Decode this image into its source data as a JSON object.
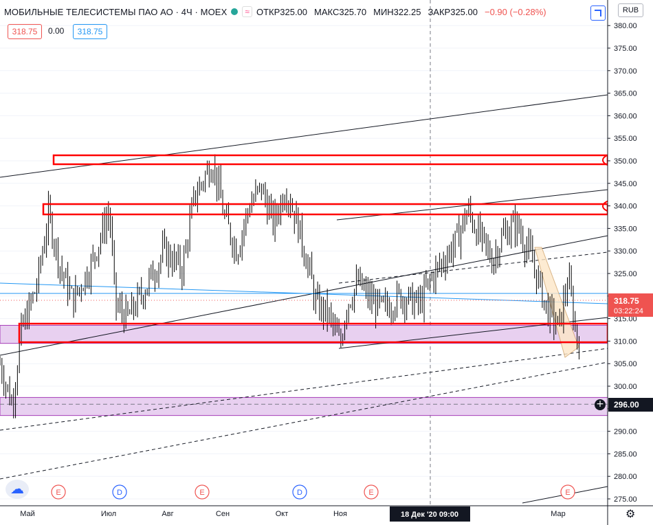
{
  "legend": {
    "title": "МОБИЛЬНЫЕ ТЕЛЕСИСТЕМЫ ПАО АО · 4Ч · MOEX",
    "flag": "≈",
    "open_label": "ОТКР",
    "open": "325.00",
    "high_label": "МАКС",
    "high": "325.70",
    "low_label": "МИН",
    "low": "322.25",
    "close_label": "ЗАКР",
    "close": "325.00",
    "change": "−0.90 (−0.28%)"
  },
  "quote": {
    "bid": "318.75",
    "spread": "0.00",
    "ask": "318.75"
  },
  "currency": "RUB",
  "colors": {
    "bg": "#ffffff",
    "candle": "#000000",
    "zone_fill": "#e6ccef",
    "zone_stroke": "#9c27b0",
    "red": "#ff0000",
    "blue_line": "#2196f3",
    "price_tag": "#ef5350",
    "dark_tag": "#131722"
  },
  "icons": [
    "tradingview-logo-icon",
    "settings-gear-icon",
    "add-alert-plus-icon",
    "fullscreen-icon"
  ],
  "chart_data": {
    "type": "candlestick",
    "title": "МОБИЛЬНЫЕ ТЕЛЕСИСТЕМЫ ПАО АО · 4Ч · MOEX",
    "interval": "4Ч",
    "currency": "RUB",
    "x_ticks": [
      "Май",
      "Июл",
      "Авг",
      "Сен",
      "Окт",
      "Ноя",
      "Мар"
    ],
    "crosshair_x_label": "18 Дек '20  09:00",
    "y_ticks": [
      275,
      280,
      285,
      290,
      295,
      300,
      305,
      310,
      315,
      320,
      325,
      330,
      335,
      340,
      345,
      350,
      355,
      360,
      365,
      370,
      375,
      380
    ],
    "ylim": [
      272.5,
      384
    ],
    "y_scale_position": "right",
    "last_price": 318.75,
    "last_price_label": "318.75",
    "countdown": "03:22:24",
    "price_label_296": "296.00",
    "approx_close_path": [
      {
        "x": 0.0,
        "y": 305
      },
      {
        "x": 0.02,
        "y": 296
      },
      {
        "x": 0.035,
        "y": 312
      },
      {
        "x": 0.06,
        "y": 322
      },
      {
        "x": 0.08,
        "y": 338
      },
      {
        "x": 0.1,
        "y": 326
      },
      {
        "x": 0.12,
        "y": 319
      },
      {
        "x": 0.15,
        "y": 327
      },
      {
        "x": 0.18,
        "y": 339
      },
      {
        "x": 0.19,
        "y": 318
      },
      {
        "x": 0.21,
        "y": 315
      },
      {
        "x": 0.24,
        "y": 322
      },
      {
        "x": 0.27,
        "y": 330
      },
      {
        "x": 0.3,
        "y": 326
      },
      {
        "x": 0.32,
        "y": 342
      },
      {
        "x": 0.35,
        "y": 350
      },
      {
        "x": 0.37,
        "y": 337
      },
      {
        "x": 0.39,
        "y": 330
      },
      {
        "x": 0.41,
        "y": 340
      },
      {
        "x": 0.43,
        "y": 344
      },
      {
        "x": 0.45,
        "y": 336
      },
      {
        "x": 0.47,
        "y": 344
      },
      {
        "x": 0.49,
        "y": 336
      },
      {
        "x": 0.51,
        "y": 325
      },
      {
        "x": 0.52,
        "y": 318
      },
      {
        "x": 0.54,
        "y": 316
      },
      {
        "x": 0.56,
        "y": 309
      },
      {
        "x": 0.57,
        "y": 318
      },
      {
        "x": 0.59,
        "y": 323
      },
      {
        "x": 0.61,
        "y": 319
      },
      {
        "x": 0.63,
        "y": 317
      },
      {
        "x": 0.66,
        "y": 320
      },
      {
        "x": 0.69,
        "y": 318
      },
      {
        "x": 0.71,
        "y": 324
      },
      {
        "x": 0.73,
        "y": 328
      },
      {
        "x": 0.75,
        "y": 332
      },
      {
        "x": 0.77,
        "y": 339
      },
      {
        "x": 0.79,
        "y": 333
      },
      {
        "x": 0.81,
        "y": 328
      },
      {
        "x": 0.83,
        "y": 334
      },
      {
        "x": 0.85,
        "y": 336
      },
      {
        "x": 0.87,
        "y": 330
      },
      {
        "x": 0.88,
        "y": 326
      },
      {
        "x": 0.9,
        "y": 317
      },
      {
        "x": 0.92,
        "y": 313
      },
      {
        "x": 0.935,
        "y": 324
      },
      {
        "x": 0.95,
        "y": 310
      },
      {
        "x": 0.97,
        "y": 318.75
      }
    ],
    "horizontal_zones": [
      {
        "from": 349.5,
        "to": 351.5,
        "style": "red-outline"
      },
      {
        "from": 338.5,
        "to": 340.5,
        "style": "red-outline"
      },
      {
        "from": 309.5,
        "to": 313.5,
        "style": "red-outline-purple-fill"
      },
      {
        "from": 293.5,
        "to": 297.5,
        "style": "purple-fill"
      }
    ],
    "event_markers": [
      {
        "label": "E",
        "near": "Май"
      },
      {
        "label": "D",
        "near": "Июл"
      },
      {
        "label": "E",
        "near": "Авг"
      },
      {
        "label": "D",
        "near": "Окт"
      },
      {
        "label": "E",
        "near": "Ноя"
      },
      {
        "label": "E",
        "near": "Мар"
      }
    ],
    "grid": true
  }
}
